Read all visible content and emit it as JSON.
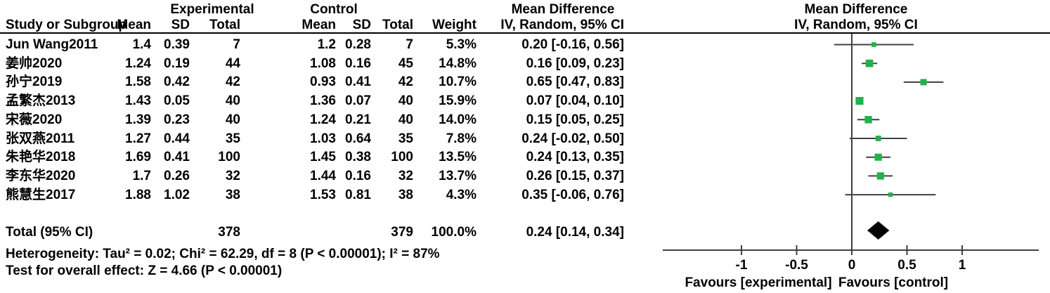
{
  "header": {
    "study_col": "Study or Subgroup",
    "group1": "Experimental",
    "group2": "Control",
    "effect_col_line1": "Mean Difference",
    "effect_col_line2": "IV, Random, 95% CI",
    "plot_col_line1": "Mean Difference",
    "plot_col_line2": "IV, Random, 95% CI",
    "sub_cols": {
      "mean1": "Mean",
      "sd1": "SD",
      "total1": "Total",
      "mean2": "Mean",
      "sd2": "SD",
      "total2": "Total",
      "weight": "Weight"
    }
  },
  "studies": [
    {
      "name": "Jun Wang2011",
      "mean1": "1.4",
      "sd1": "0.39",
      "total1": "7",
      "mean2": "1.2",
      "sd2": "0.28",
      "total2": "7",
      "weight": "5.3%",
      "ci_text": "0.20 [-0.16, 0.56]"
    },
    {
      "name": "姜帅2020",
      "mean1": "1.24",
      "sd1": "0.19",
      "total1": "44",
      "mean2": "1.08",
      "sd2": "0.16",
      "total2": "45",
      "weight": "14.8%",
      "ci_text": "0.16 [0.09, 0.23]"
    },
    {
      "name": "孙宁2019",
      "mean1": "1.58",
      "sd1": "0.42",
      "total1": "42",
      "mean2": "0.93",
      "sd2": "0.41",
      "total2": "42",
      "weight": "10.7%",
      "ci_text": "0.65 [0.47, 0.83]"
    },
    {
      "name": "孟繁杰2013",
      "mean1": "1.43",
      "sd1": "0.05",
      "total1": "40",
      "mean2": "1.36",
      "sd2": "0.07",
      "total2": "40",
      "weight": "15.9%",
      "ci_text": "0.07 [0.04, 0.10]"
    },
    {
      "name": "宋薇2020",
      "mean1": "1.39",
      "sd1": "0.23",
      "total1": "40",
      "mean2": "1.24",
      "sd2": "0.21",
      "total2": "40",
      "weight": "14.0%",
      "ci_text": "0.15 [0.05, 0.25]"
    },
    {
      "name": "张双燕2011",
      "mean1": "1.27",
      "sd1": "0.44",
      "total1": "35",
      "mean2": "1.03",
      "sd2": "0.64",
      "total2": "35",
      "weight": "7.8%",
      "ci_text": "0.24 [-0.02, 0.50]"
    },
    {
      "name": "朱艳华2018",
      "mean1": "1.69",
      "sd1": "0.41",
      "total1": "100",
      "mean2": "1.45",
      "sd2": "0.38",
      "total2": "100",
      "weight": "13.5%",
      "ci_text": "0.24 [0.13, 0.35]"
    },
    {
      "name": "李东华2020",
      "mean1": "1.7",
      "sd1": "0.26",
      "total1": "32",
      "mean2": "1.44",
      "sd2": "0.16",
      "total2": "32",
      "weight": "13.7%",
      "ci_text": "0.26 [0.15, 0.37]"
    },
    {
      "name": "熊慧生2017",
      "mean1": "1.88",
      "sd1": "1.02",
      "total1": "38",
      "mean2": "1.53",
      "sd2": "0.81",
      "total2": "38",
      "weight": "4.3%",
      "ci_text": "0.35 [-0.06, 0.76]"
    }
  ],
  "total": {
    "label": "Total (95% CI)",
    "total1": "378",
    "total2": "379",
    "weight": "100.0%",
    "ci_text": "0.24 [0.14, 0.34]"
  },
  "footer": {
    "heterogeneity": "Heterogeneity: Tau² = 0.02; Chi² = 62.29, df = 8 (P < 0.00001); I² = 87%",
    "overall_effect": "Test for overall effect: Z = 4.66 (P < 0.00001)"
  },
  "chart_data": {
    "type": "forest",
    "title": "Mean Difference IV, Random, 95% CI",
    "x_axis": {
      "ticks": [
        -1,
        -0.5,
        0,
        0.5,
        1
      ],
      "tick_labels": [
        "-1",
        "-0.5",
        "0",
        "0.5",
        "1"
      ],
      "range": [
        -1.71,
        1.69
      ],
      "zero_line": 0
    },
    "favours_left": "Favours [experimental]",
    "favours_right": "Favours [control]",
    "series": [
      {
        "name": "Jun Wang2011",
        "est": 0.2,
        "lo": -0.16,
        "hi": 0.56,
        "weight": 5.3
      },
      {
        "name": "姜帅2020",
        "est": 0.16,
        "lo": 0.09,
        "hi": 0.23,
        "weight": 14.8
      },
      {
        "name": "孙宁2019",
        "est": 0.65,
        "lo": 0.47,
        "hi": 0.83,
        "weight": 10.7
      },
      {
        "name": "孟繁杰2013",
        "est": 0.07,
        "lo": 0.04,
        "hi": 0.1,
        "weight": 15.9
      },
      {
        "name": "宋薇2020",
        "est": 0.15,
        "lo": 0.05,
        "hi": 0.25,
        "weight": 14.0
      },
      {
        "name": "张双燕2011",
        "est": 0.24,
        "lo": -0.02,
        "hi": 0.5,
        "weight": 7.8
      },
      {
        "name": "朱艳华2018",
        "est": 0.24,
        "lo": 0.13,
        "hi": 0.35,
        "weight": 13.5
      },
      {
        "name": "李东华2020",
        "est": 0.26,
        "lo": 0.15,
        "hi": 0.37,
        "weight": 13.7
      },
      {
        "name": "熊慧生2017",
        "est": 0.35,
        "lo": -0.06,
        "hi": 0.76,
        "weight": 4.3
      }
    ],
    "overall": {
      "name": "Total (95% CI)",
      "est": 0.24,
      "lo": 0.14,
      "hi": 0.34
    },
    "colors": {
      "marker": "#22b14c",
      "line": "#404040",
      "diamond": "#000000",
      "text": "#000000"
    }
  }
}
